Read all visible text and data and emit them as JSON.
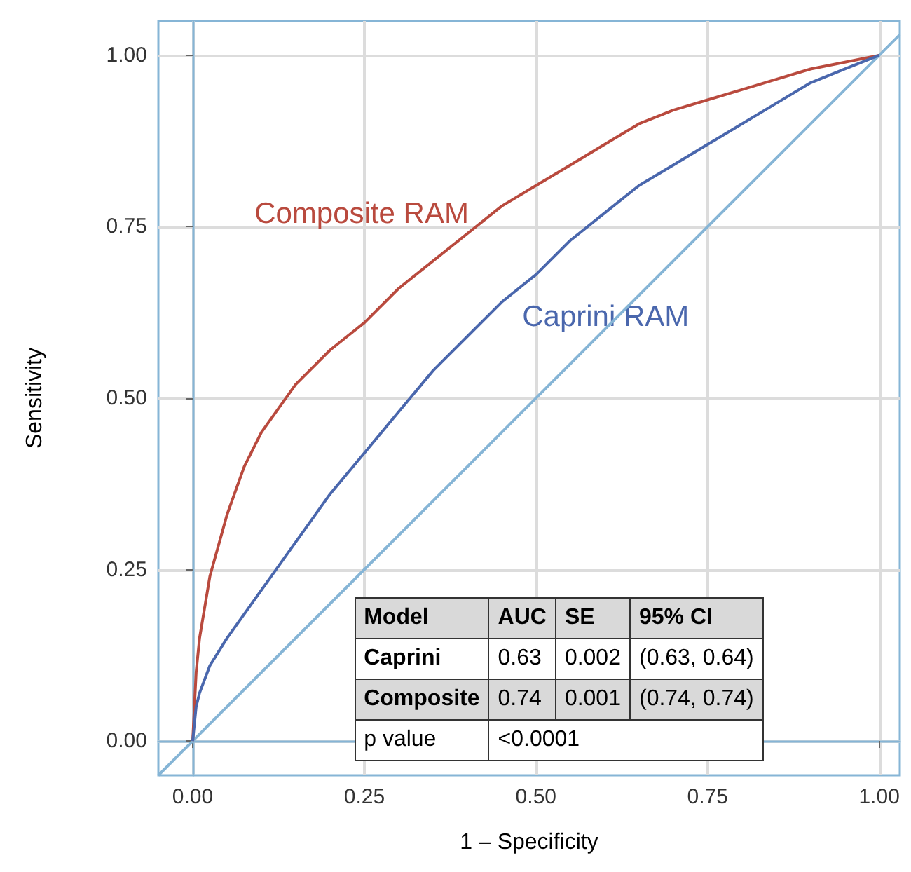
{
  "chart_data": {
    "type": "line",
    "xlabel": "1 – Specificity",
    "ylabel": "Sensitivity",
    "xlim": [
      -0.05,
      1.03
    ],
    "ylim": [
      -0.05,
      1.05
    ],
    "xticks": [
      {
        "value": 0,
        "label": "0.00"
      },
      {
        "value": 0.25,
        "label": "0.25"
      },
      {
        "value": 0.5,
        "label": "0.50"
      },
      {
        "value": 0.75,
        "label": "0.75"
      },
      {
        "value": 1,
        "label": "1.00"
      }
    ],
    "yticks": [
      {
        "value": 0,
        "label": "0.00"
      },
      {
        "value": 0.25,
        "label": "0.25"
      },
      {
        "value": 0.5,
        "label": "0.50"
      },
      {
        "value": 0.75,
        "label": "0.75"
      },
      {
        "value": 1,
        "label": "1.00"
      }
    ],
    "grid": true,
    "legend": false,
    "marker": "none",
    "line_style": "solid",
    "series": [
      {
        "name": "Composite RAM",
        "color": "#b94a3e",
        "x": [
          0,
          0.005,
          0.01,
          0.025,
          0.05,
          0.075,
          0.1,
          0.15,
          0.2,
          0.25,
          0.3,
          0.35,
          0.4,
          0.45,
          0.5,
          0.55,
          0.6,
          0.65,
          0.7,
          0.75,
          0.8,
          0.85,
          0.9,
          0.95,
          1
        ],
        "values": [
          0,
          0.1,
          0.15,
          0.24,
          0.33,
          0.4,
          0.45,
          0.52,
          0.57,
          0.61,
          0.66,
          0.7,
          0.74,
          0.78,
          0.81,
          0.84,
          0.87,
          0.9,
          0.92,
          0.935,
          0.95,
          0.965,
          0.98,
          0.99,
          1
        ]
      },
      {
        "name": "Caprini RAM",
        "color": "#4a67ad",
        "x": [
          0,
          0.005,
          0.01,
          0.025,
          0.05,
          0.1,
          0.15,
          0.2,
          0.25,
          0.3,
          0.35,
          0.4,
          0.45,
          0.5,
          0.55,
          0.6,
          0.65,
          0.7,
          0.75,
          0.8,
          0.85,
          0.9,
          0.95,
          1
        ],
        "values": [
          0,
          0.05,
          0.07,
          0.11,
          0.15,
          0.22,
          0.29,
          0.36,
          0.42,
          0.48,
          0.54,
          0.59,
          0.64,
          0.68,
          0.73,
          0.77,
          0.81,
          0.84,
          0.87,
          0.9,
          0.93,
          0.96,
          0.98,
          1
        ]
      },
      {
        "color": "#86b5d6",
        "x": [
          -0.05,
          1.03
        ],
        "values": [
          -0.05,
          1.03
        ]
      }
    ],
    "annotations": [
      "Model",
      "AUC",
      "SE",
      "95% CI",
      "Caprini",
      "0.63",
      "0.002",
      "(0.63, 0.64)",
      "Composite",
      "0.74",
      "0.001",
      "(0.74, 0.74)",
      "p value",
      "<0.0001"
    ]
  }
}
